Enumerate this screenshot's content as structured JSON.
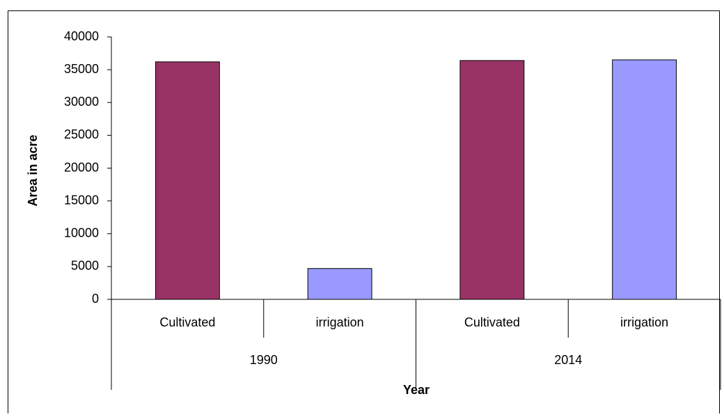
{
  "chart_data": {
    "type": "bar",
    "categories": [
      "Cultivated",
      "irrigation",
      "Cultivated",
      "irrigation"
    ],
    "groups": [
      "1990",
      "2014"
    ],
    "values": [
      36200,
      4700,
      36400,
      36500
    ],
    "colors": [
      "#993366",
      "#9999ff",
      "#993366",
      "#9999ff"
    ],
    "ylabel": "Area in acre",
    "xlabel": "Year",
    "ylim": [
      0,
      40000
    ],
    "yticks": [
      0,
      5000,
      10000,
      15000,
      20000,
      25000,
      30000,
      35000,
      40000
    ],
    "grid": false
  }
}
